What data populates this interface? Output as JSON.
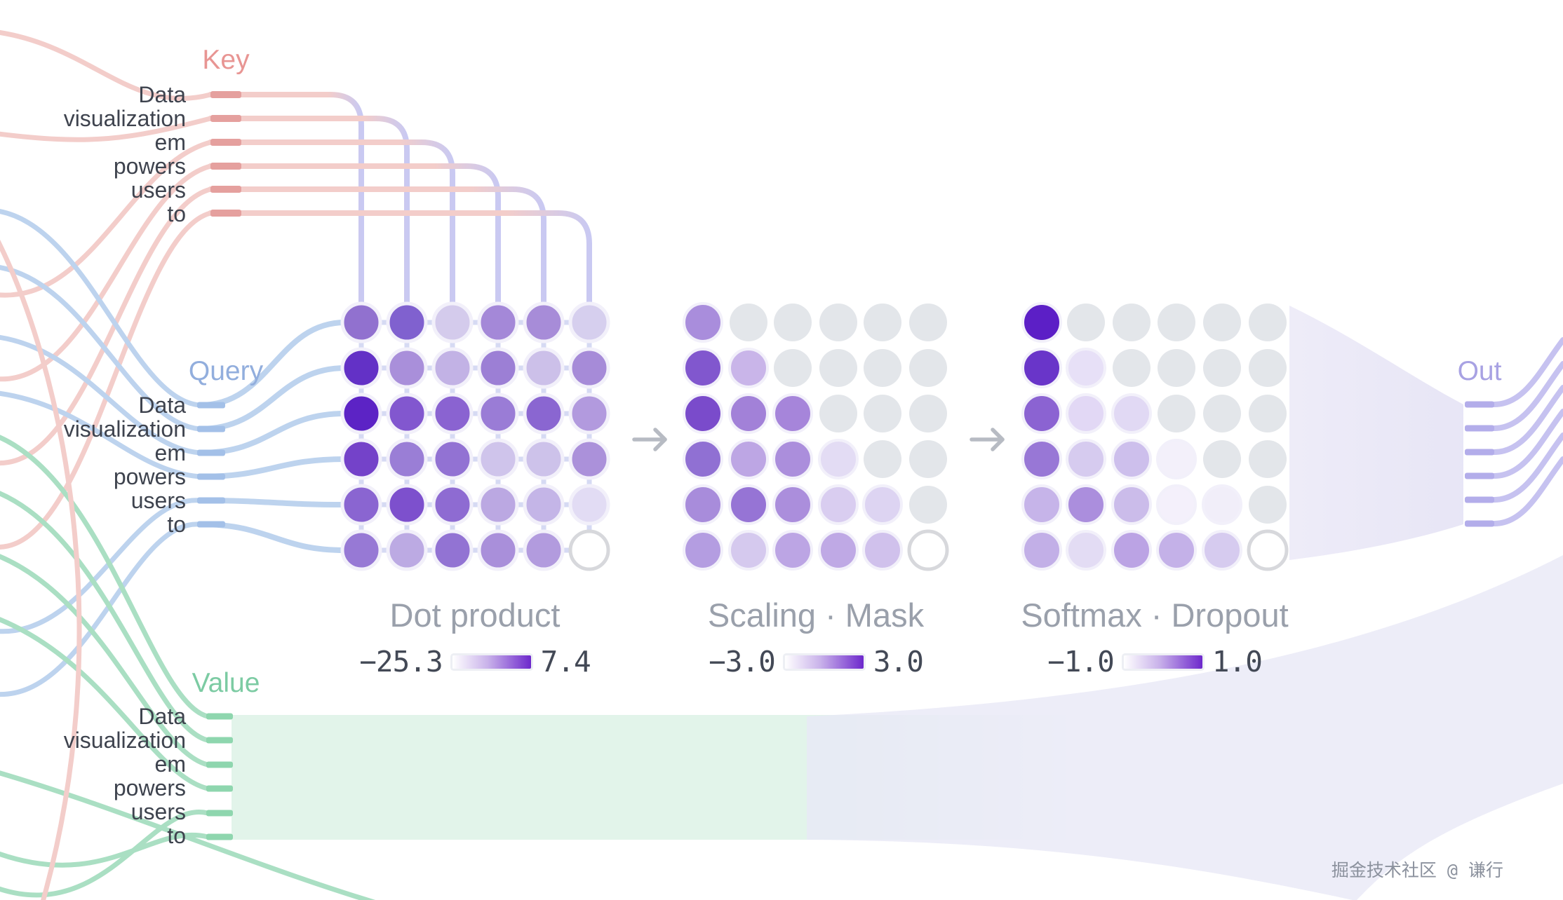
{
  "labels": {
    "key": "Key",
    "query": "Query",
    "value": "Value",
    "out": "Out"
  },
  "tokens": [
    "Data",
    "visualization",
    "em",
    "powers",
    "users",
    "to"
  ],
  "stages": [
    {
      "title": "Dot product",
      "legend": {
        "min": "−25.3",
        "max": "7.4"
      }
    },
    {
      "title": "Scaling · Mask",
      "legend": {
        "min": "−3.0",
        "max": "3.0"
      }
    },
    {
      "title": "Softmax · Dropout",
      "legend": {
        "min": "−1.0",
        "max": "1.0"
      }
    }
  ],
  "watermark": "掘金技术社区 @ 谦行",
  "colors": {
    "key_accent": "#e89593",
    "key_line": "#f3cdca",
    "key_tick": "#e5a09e",
    "query_accent": "#92aedd",
    "query_line": "#bdd3ee",
    "query_tick": "#a3c0e8",
    "value_accent": "#7ccba3",
    "value_line": "#aadfc3",
    "value_tick": "#8ed6ae",
    "value_band": "#e2f4ea",
    "out_accent": "#a8a2e3",
    "out_line": "#c6c2f0",
    "out_tick": "#b3adea",
    "grid_line": "#d6daf3",
    "column_line": "#c9c9f2",
    "mask_fill": "#e3e6ea",
    "empty_fill": "#ffffff",
    "empty_stroke": "#d7d8dc",
    "cell_ring": "#f2f0fa",
    "title_color": "#9aa0ab",
    "legend_text": "#434956",
    "legend_grad_start": "#ffffff",
    "legend_grad_end": "#6d28cc",
    "ribbon": "#e9e9f6",
    "funnel_start": "#edebf8",
    "funnel_end": "#e6e4f5",
    "arrow": "#b7bbc3",
    "token_text": "#3e434e",
    "watermark_color": "#8b919d"
  },
  "matrices": {
    "dot_product": [
      [
        "#9171cf",
        "#8061cf",
        "#d4cbec",
        "#a488d8",
        "#a78cd8",
        "#d6cfee"
      ],
      [
        "#6331c6",
        "#a98fda",
        "#c2b2e5",
        "#9c7fd5",
        "#ccc0e9",
        "#a68bd8"
      ],
      [
        "#5c23c5",
        "#8257cf",
        "#8a63d1",
        "#9a7cd6",
        "#8a66d1",
        "#b29ade"
      ],
      [
        "#7442c9",
        "#9a7ed6",
        "#9272d3",
        "#cfc4eb",
        "#cdc2ea",
        "#ab91da"
      ],
      [
        "#8a65d1",
        "#7d50cd",
        "#8e6bd2",
        "#bba8e2",
        "#c4b5e7",
        "#e2dcf4"
      ],
      [
        "#9779d5",
        "#bcaae3",
        "#9273d3",
        "#a98fda",
        "#b29bde",
        "empty"
      ]
    ],
    "scaling_mask": [
      [
        "#a98ddc",
        "mask",
        "mask",
        "mask",
        "mask",
        "mask"
      ],
      [
        "#8157ce",
        "#c9b5e9",
        "mask",
        "mask",
        "mask",
        "mask"
      ],
      [
        "#7a4bcb",
        "#a281d8",
        "#a685da",
        "mask",
        "mask",
        "mask"
      ],
      [
        "#9070d3",
        "#bda6e4",
        "#ab8edc",
        "#e3dcf4",
        "mask",
        "mask"
      ],
      [
        "#a88cdb",
        "#9674d5",
        "#ab8edc",
        "#d9cdf0",
        "#ddd4f2",
        "mask"
      ],
      [
        "#b49de1",
        "#d5c9ee",
        "#bca5e4",
        "#bfa9e5",
        "#d0c1ec",
        "empty"
      ]
    ],
    "softmax_dropout": [
      [
        "#5c1fc6",
        "mask",
        "mask",
        "mask",
        "mask",
        "mask"
      ],
      [
        "#6935c9",
        "#e7e0f7",
        "mask",
        "mask",
        "mask",
        "mask"
      ],
      [
        "#8b63d2",
        "#e2d8f5",
        "#e1d9f4",
        "mask",
        "mask",
        "mask"
      ],
      [
        "#9877d6",
        "#d6cbef",
        "#cdbfec",
        "#f3f0fa",
        "mask",
        "mask"
      ],
      [
        "#c6b4e9",
        "#ab8edd",
        "#cbbcea",
        "#f4f0fb",
        "#f1eef9",
        "mask"
      ],
      [
        "#c2afe7",
        "#e3dcf4",
        "#bba3e4",
        "#c4b1e8",
        "#d6cbef",
        "empty"
      ]
    ]
  }
}
